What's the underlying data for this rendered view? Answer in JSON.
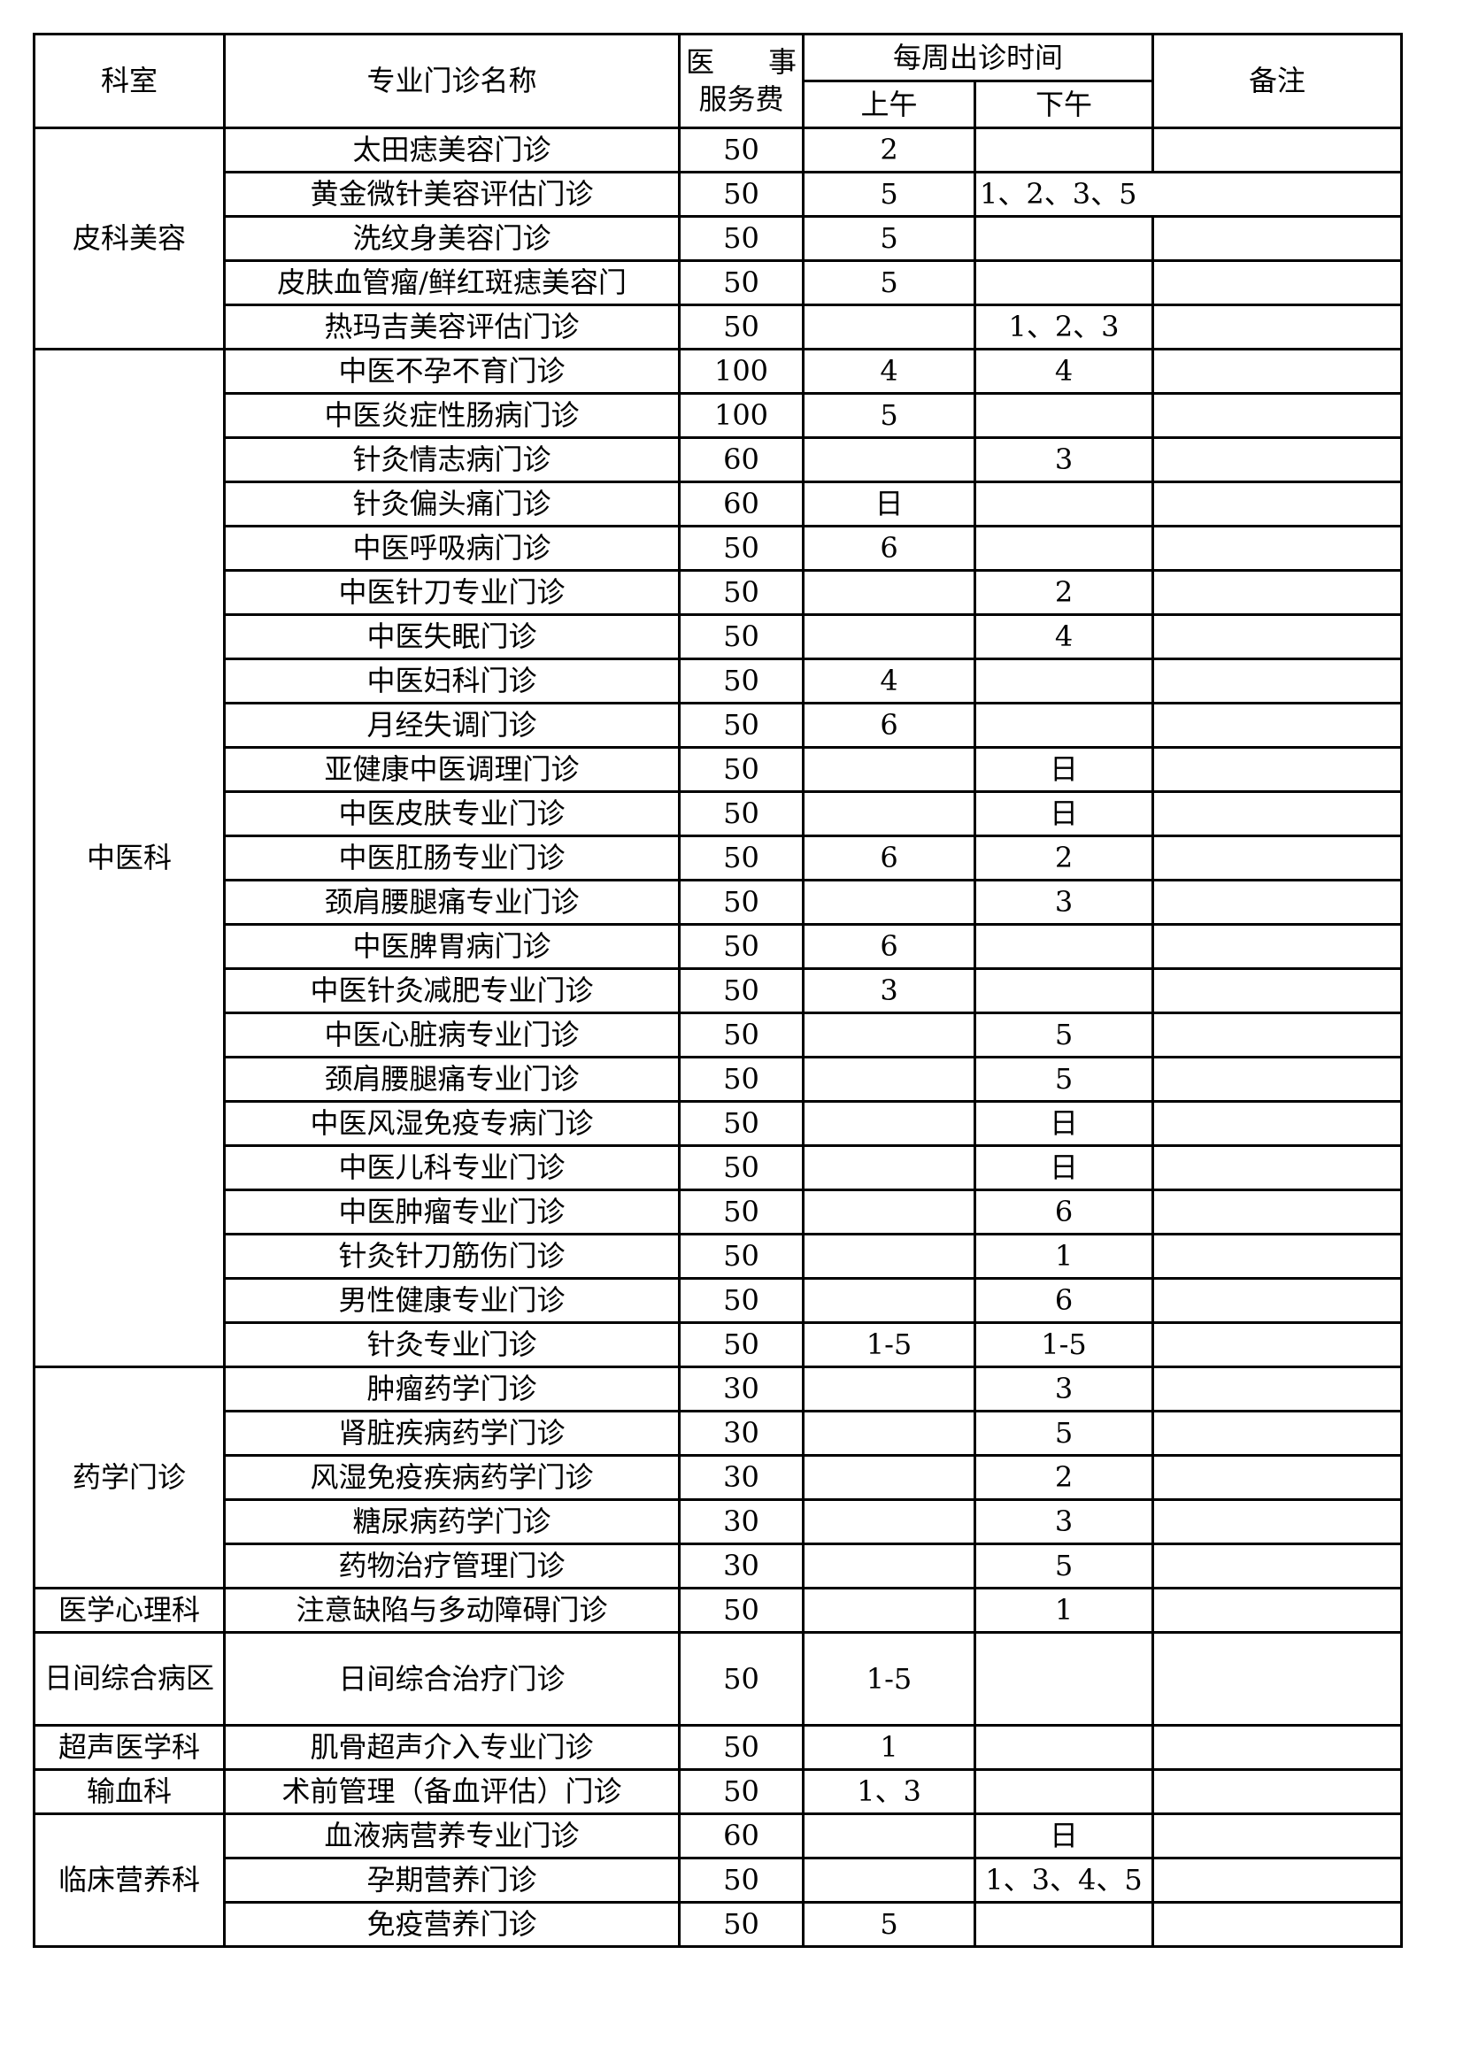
{
  "header": {
    "department": "科室",
    "clinic_name": "专业门诊名称",
    "fee_line1_a": "医",
    "fee_line1_b": "事",
    "fee_line2": "服务费",
    "weekly_schedule": "每周出诊时间",
    "morning": "上午",
    "afternoon": "下午",
    "remarks": "备注"
  },
  "groups": [
    {
      "department": "皮科美容",
      "rows": [
        {
          "name": "太田痣美容门诊",
          "fee": "50",
          "am": "2",
          "pm": ""
        },
        {
          "name": "黄金微针美容评估门诊",
          "fee": "50",
          "am": "5",
          "pm": "1、2、3、5",
          "pm_overflow": true
        },
        {
          "name": "洗纹身美容门诊",
          "fee": "50",
          "am": "5",
          "pm": ""
        },
        {
          "name": "皮肤血管瘤/鲜红斑痣美容门",
          "fee": "50",
          "am": "5",
          "pm": ""
        },
        {
          "name": "热玛吉美容评估门诊",
          "fee": "50",
          "am": "",
          "pm": "1、2、3"
        }
      ]
    },
    {
      "department": "中医科",
      "rows": [
        {
          "name": "中医不孕不育门诊",
          "fee": "100",
          "am": "4",
          "pm": "4"
        },
        {
          "name": "中医炎症性肠病门诊",
          "fee": "100",
          "am": "5",
          "pm": ""
        },
        {
          "name": "针灸情志病门诊",
          "fee": "60",
          "am": "",
          "pm": "3"
        },
        {
          "name": "针灸偏头痛门诊",
          "fee": "60",
          "am": "日",
          "pm": ""
        },
        {
          "name": "中医呼吸病门诊",
          "fee": "50",
          "am": "6",
          "pm": ""
        },
        {
          "name": "中医针刀专业门诊",
          "fee": "50",
          "am": "",
          "pm": "2"
        },
        {
          "name": "中医失眠门诊",
          "fee": "50",
          "am": "",
          "pm": "4"
        },
        {
          "name": "中医妇科门诊",
          "fee": "50",
          "am": "4",
          "pm": ""
        },
        {
          "name": "月经失调门诊",
          "fee": "50",
          "am": "6",
          "pm": ""
        },
        {
          "name": "亚健康中医调理门诊",
          "fee": "50",
          "am": "",
          "pm": "日"
        },
        {
          "name": "中医皮肤专业门诊",
          "fee": "50",
          "am": "",
          "pm": "日"
        },
        {
          "name": "中医肛肠专业门诊",
          "fee": "50",
          "am": "6",
          "pm": "2"
        },
        {
          "name": "颈肩腰腿痛专业门诊",
          "fee": "50",
          "am": "",
          "pm": "3"
        },
        {
          "name": "中医脾胃病门诊",
          "fee": "50",
          "am": "6",
          "pm": ""
        },
        {
          "name": "中医针灸减肥专业门诊",
          "fee": "50",
          "am": "3",
          "pm": ""
        },
        {
          "name": "中医心脏病专业门诊",
          "fee": "50",
          "am": "",
          "pm": "5"
        },
        {
          "name": "颈肩腰腿痛专业门诊",
          "fee": "50",
          "am": "",
          "pm": "5"
        },
        {
          "name": "中医风湿免疫专病门诊",
          "fee": "50",
          "am": "",
          "pm": "日"
        },
        {
          "name": "中医儿科专业门诊",
          "fee": "50",
          "am": "",
          "pm": "日"
        },
        {
          "name": "中医肿瘤专业门诊",
          "fee": "50",
          "am": "",
          "pm": "6"
        },
        {
          "name": "针灸针刀筋伤门诊",
          "fee": "50",
          "am": "",
          "pm": "1"
        },
        {
          "name": "男性健康专业门诊",
          "fee": "50",
          "am": "",
          "pm": "6"
        },
        {
          "name": "针灸专业门诊",
          "fee": "50",
          "am": "1-5",
          "pm": "1-5"
        }
      ]
    },
    {
      "department": "药学门诊",
      "rows": [
        {
          "name": "肿瘤药学门诊",
          "fee": "30",
          "am": "",
          "pm": "3"
        },
        {
          "name": "肾脏疾病药学门诊",
          "fee": "30",
          "am": "",
          "pm": "5"
        },
        {
          "name": "风湿免疫疾病药学门诊",
          "fee": "30",
          "am": "",
          "pm": "2"
        },
        {
          "name": "糖尿病药学门诊",
          "fee": "30",
          "am": "",
          "pm": "3"
        },
        {
          "name": "药物治疗管理门诊",
          "fee": "30",
          "am": "",
          "pm": "5"
        }
      ]
    },
    {
      "department": "医学心理科",
      "rows": [
        {
          "name": "注意缺陷与多动障碍门诊",
          "fee": "50",
          "am": "",
          "pm": "1"
        }
      ]
    },
    {
      "department": "日间综合病区",
      "tall": true,
      "rows": [
        {
          "name": "日间综合治疗门诊",
          "fee": "50",
          "am": "1-5",
          "pm": ""
        }
      ]
    },
    {
      "department": "超声医学科",
      "rows": [
        {
          "name": "肌骨超声介入专业门诊",
          "fee": "50",
          "am": "1",
          "pm": ""
        }
      ]
    },
    {
      "department": "输血科",
      "rows": [
        {
          "name": "术前管理（备血评估）门诊",
          "fee": "50",
          "am": "1、3",
          "pm": ""
        }
      ]
    },
    {
      "department": "临床营养科",
      "rows": [
        {
          "name": "血液病营养专业门诊",
          "fee": "60",
          "am": "",
          "pm": "日"
        },
        {
          "name": "孕期营养门诊",
          "fee": "50",
          "am": "",
          "pm": "1、3、4、5"
        },
        {
          "name": "免疫营养门诊",
          "fee": "50",
          "am": "5",
          "pm": ""
        }
      ]
    }
  ]
}
